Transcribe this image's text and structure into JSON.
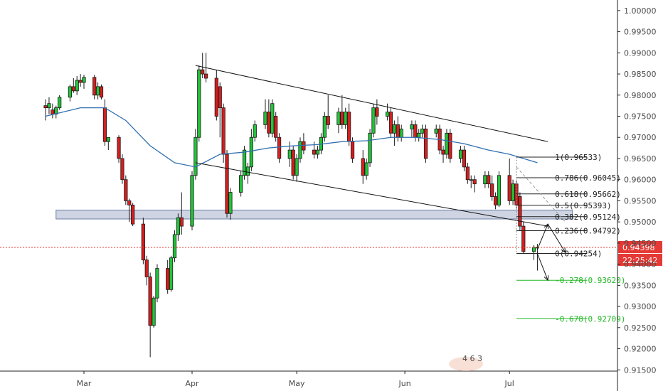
{
  "chart_data": {
    "type": "candlestick",
    "y_axis": {
      "ylim": [
        0.91,
        1.0025
      ],
      "ticks": [
        "1.00000",
        "0.99500",
        "0.99000",
        "0.98500",
        "0.98000",
        "0.97500",
        "0.97000",
        "0.96500",
        "0.96000",
        "0.95500",
        "0.95000",
        "0.94500",
        "0.94000",
        "0.93500",
        "0.93000",
        "0.92500",
        "0.92000",
        "0.91500"
      ]
    },
    "x_axis": {
      "ticks": [
        "Mar",
        "Apr",
        "May",
        "Jun",
        "Jul"
      ]
    },
    "candles": [
      {
        "date": "2019-02-18",
        "o": 0.9775,
        "h": 0.979,
        "l": 0.974,
        "c": 0.977
      },
      {
        "date": "2019-02-19",
        "o": 0.977,
        "h": 0.9795,
        "l": 0.9755,
        "c": 0.978
      },
      {
        "date": "2019-02-20",
        "o": 0.9765,
        "h": 0.978,
        "l": 0.9745,
        "c": 0.9755
      },
      {
        "date": "2019-02-21",
        "o": 0.9755,
        "h": 0.9775,
        "l": 0.9745,
        "c": 0.977
      },
      {
        "date": "2019-02-22",
        "o": 0.977,
        "h": 0.98,
        "l": 0.9765,
        "c": 0.9795
      },
      {
        "date": "2019-02-25",
        "o": 0.9795,
        "h": 0.9825,
        "l": 0.9785,
        "c": 0.982
      },
      {
        "date": "2019-02-26",
        "o": 0.982,
        "h": 0.984,
        "l": 0.9805,
        "c": 0.981
      },
      {
        "date": "2019-02-27",
        "o": 0.981,
        "h": 0.9845,
        "l": 0.98,
        "c": 0.9835
      },
      {
        "date": "2019-02-28",
        "o": 0.9835,
        "h": 0.985,
        "l": 0.982,
        "c": 0.983
      },
      {
        "date": "2019-03-01",
        "o": 0.983,
        "h": 0.9848,
        "l": 0.9815,
        "c": 0.9842
      },
      {
        "date": "2019-03-04",
        "o": 0.9842,
        "h": 0.9848,
        "l": 0.979,
        "c": 0.98
      },
      {
        "date": "2019-03-05",
        "o": 0.98,
        "h": 0.983,
        "l": 0.979,
        "c": 0.982
      },
      {
        "date": "2019-03-06",
        "o": 0.982,
        "h": 0.9825,
        "l": 0.979,
        "c": 0.9795
      },
      {
        "date": "2019-03-07",
        "o": 0.977,
        "h": 0.979,
        "l": 0.968,
        "c": 0.969
      },
      {
        "date": "2019-03-08",
        "o": 0.969,
        "h": 0.97,
        "l": 0.967,
        "c": 0.97
      },
      {
        "date": "2019-03-11",
        "o": 0.97,
        "h": 0.9705,
        "l": 0.964,
        "c": 0.965
      },
      {
        "date": "2019-03-12",
        "o": 0.965,
        "h": 0.966,
        "l": 0.959,
        "c": 0.96
      },
      {
        "date": "2019-03-13",
        "o": 0.96,
        "h": 0.961,
        "l": 0.954,
        "c": 0.955
      },
      {
        "date": "2019-03-14",
        "o": 0.955,
        "h": 0.9555,
        "l": 0.95,
        "c": 0.954
      },
      {
        "date": "2019-03-15",
        "o": 0.954,
        "h": 0.9545,
        "l": 0.949,
        "c": 0.9495
      },
      {
        "date": "2019-03-18",
        "o": 0.9495,
        "h": 0.951,
        "l": 0.94,
        "c": 0.941
      },
      {
        "date": "2019-03-19",
        "o": 0.941,
        "h": 0.942,
        "l": 0.935,
        "c": 0.937
      },
      {
        "date": "2019-03-20",
        "o": 0.937,
        "h": 0.938,
        "l": 0.918,
        "c": 0.9255
      },
      {
        "date": "2019-03-21",
        "o": 0.9255,
        "h": 0.9325,
        "l": 0.925,
        "c": 0.932
      },
      {
        "date": "2019-03-22",
        "o": 0.932,
        "h": 0.94,
        "l": 0.931,
        "c": 0.939
      },
      {
        "date": "2019-03-25",
        "o": 0.939,
        "h": 0.941,
        "l": 0.933,
        "c": 0.934
      },
      {
        "date": "2019-03-26",
        "o": 0.934,
        "h": 0.942,
        "l": 0.9335,
        "c": 0.9415
      },
      {
        "date": "2019-03-27",
        "o": 0.9415,
        "h": 0.948,
        "l": 0.9405,
        "c": 0.947
      },
      {
        "date": "2019-03-28",
        "o": 0.947,
        "h": 0.952,
        "l": 0.9455,
        "c": 0.951
      },
      {
        "date": "2019-03-29",
        "o": 0.951,
        "h": 0.957,
        "l": 0.947,
        "c": 0.949
      },
      {
        "date": "2019-04-01",
        "o": 0.949,
        "h": 0.962,
        "l": 0.948,
        "c": 0.961
      },
      {
        "date": "2019-04-02",
        "o": 0.961,
        "h": 0.972,
        "l": 0.96,
        "c": 0.97
      },
      {
        "date": "2019-04-03",
        "o": 0.97,
        "h": 0.987,
        "l": 0.969,
        "c": 0.986
      },
      {
        "date": "2019-04-04",
        "o": 0.986,
        "h": 0.99,
        "l": 0.984,
        "c": 0.985
      },
      {
        "date": "2019-04-05",
        "o": 0.985,
        "h": 0.99,
        "l": 0.983,
        "c": 0.984
      },
      {
        "date": "2019-04-08",
        "o": 0.984,
        "h": 0.986,
        "l": 0.974,
        "c": 0.975
      },
      {
        "date": "2019-04-09",
        "o": 0.982,
        "h": 0.983,
        "l": 0.97,
        "c": 0.977
      },
      {
        "date": "2019-04-10",
        "o": 0.977,
        "h": 0.978,
        "l": 0.964,
        "c": 0.966
      },
      {
        "date": "2019-04-11",
        "o": 0.966,
        "h": 0.967,
        "l": 0.951,
        "c": 0.952
      },
      {
        "date": "2019-04-12",
        "o": 0.952,
        "h": 0.958,
        "l": 0.9505,
        "c": 0.957
      },
      {
        "date": "2019-04-15",
        "o": 0.957,
        "h": 0.962,
        "l": 0.956,
        "c": 0.961
      },
      {
        "date": "2019-04-16",
        "o": 0.961,
        "h": 0.968,
        "l": 0.96,
        "c": 0.967
      },
      {
        "date": "2019-04-17",
        "o": 0.961,
        "h": 0.964,
        "l": 0.959,
        "c": 0.963
      },
      {
        "date": "2019-04-18",
        "o": 0.963,
        "h": 0.972,
        "l": 0.962,
        "c": 0.97
      },
      {
        "date": "2019-04-19",
        "o": 0.97,
        "h": 0.974,
        "l": 0.969,
        "c": 0.973
      },
      {
        "date": "2019-04-22",
        "o": 0.973,
        "h": 0.979,
        "l": 0.972,
        "c": 0.976
      },
      {
        "date": "2019-04-23",
        "o": 0.976,
        "h": 0.979,
        "l": 0.97,
        "c": 0.971
      },
      {
        "date": "2019-04-24",
        "o": 0.971,
        "h": 0.979,
        "l": 0.97,
        "c": 0.978
      },
      {
        "date": "2019-04-25",
        "o": 0.975,
        "h": 0.976,
        "l": 0.969,
        "c": 0.97
      },
      {
        "date": "2019-04-26",
        "o": 0.97,
        "h": 0.971,
        "l": 0.964,
        "c": 0.965
      },
      {
        "date": "2019-04-29",
        "o": 0.965,
        "h": 0.969,
        "l": 0.963,
        "c": 0.967
      },
      {
        "date": "2019-04-30",
        "o": 0.967,
        "h": 0.968,
        "l": 0.96,
        "c": 0.961
      },
      {
        "date": "2019-05-01",
        "o": 0.961,
        "h": 0.966,
        "l": 0.9595,
        "c": 0.965
      },
      {
        "date": "2019-05-02",
        "o": 0.965,
        "h": 0.97,
        "l": 0.964,
        "c": 0.969
      },
      {
        "date": "2019-05-03",
        "o": 0.969,
        "h": 0.971,
        "l": 0.966,
        "c": 0.967
      },
      {
        "date": "2019-05-06",
        "o": 0.967,
        "h": 0.969,
        "l": 0.965,
        "c": 0.966
      },
      {
        "date": "2019-05-07",
        "o": 0.966,
        "h": 0.968,
        "l": 0.965,
        "c": 0.967
      },
      {
        "date": "2019-05-08",
        "o": 0.967,
        "h": 0.971,
        "l": 0.966,
        "c": 0.97
      },
      {
        "date": "2019-05-09",
        "o": 0.97,
        "h": 0.976,
        "l": 0.969,
        "c": 0.975
      },
      {
        "date": "2019-05-10",
        "o": 0.975,
        "h": 0.98,
        "l": 0.972,
        "c": 0.973
      },
      {
        "date": "2019-05-13",
        "o": 0.973,
        "h": 0.977,
        "l": 0.971,
        "c": 0.976
      },
      {
        "date": "2019-05-14",
        "o": 0.976,
        "h": 0.98,
        "l": 0.972,
        "c": 0.973
      },
      {
        "date": "2019-05-15",
        "o": 0.973,
        "h": 0.977,
        "l": 0.972,
        "c": 0.976
      },
      {
        "date": "2019-05-16",
        "o": 0.976,
        "h": 0.978,
        "l": 0.968,
        "c": 0.969
      },
      {
        "date": "2019-05-17",
        "o": 0.969,
        "h": 0.97,
        "l": 0.964,
        "c": 0.965
      },
      {
        "date": "2019-05-20",
        "o": 0.965,
        "h": 0.967,
        "l": 0.959,
        "c": 0.961
      },
      {
        "date": "2019-05-21",
        "o": 0.961,
        "h": 0.965,
        "l": 0.96,
        "c": 0.964
      },
      {
        "date": "2019-05-22",
        "o": 0.964,
        "h": 0.972,
        "l": 0.963,
        "c": 0.971
      },
      {
        "date": "2019-05-23",
        "o": 0.971,
        "h": 0.978,
        "l": 0.97,
        "c": 0.977
      },
      {
        "date": "2019-05-24",
        "o": 0.977,
        "h": 0.979,
        "l": 0.973,
        "c": 0.975
      },
      {
        "date": "2019-05-27",
        "o": 0.975,
        "h": 0.978,
        "l": 0.974,
        "c": 0.976
      },
      {
        "date": "2019-05-28",
        "o": 0.976,
        "h": 0.977,
        "l": 0.97,
        "c": 0.971
      },
      {
        "date": "2019-05-29",
        "o": 0.971,
        "h": 0.974,
        "l": 0.968,
        "c": 0.973
      },
      {
        "date": "2019-05-30",
        "o": 0.973,
        "h": 0.975,
        "l": 0.969,
        "c": 0.97
      },
      {
        "date": "2019-05-31",
        "o": 0.97,
        "h": 0.973,
        "l": 0.969,
        "c": 0.972
      },
      {
        "date": "2019-06-03",
        "o": 0.972,
        "h": 0.974,
        "l": 0.97,
        "c": 0.973
      },
      {
        "date": "2019-06-04",
        "o": 0.973,
        "h": 0.974,
        "l": 0.969,
        "c": 0.97
      },
      {
        "date": "2019-06-05",
        "o": 0.97,
        "h": 0.972,
        "l": 0.969,
        "c": 0.971
      },
      {
        "date": "2019-06-06",
        "o": 0.971,
        "h": 0.973,
        "l": 0.97,
        "c": 0.972
      },
      {
        "date": "2019-06-07",
        "o": 0.972,
        "h": 0.973,
        "l": 0.964,
        "c": 0.965
      },
      {
        "date": "2019-06-10",
        "o": 0.971,
        "h": 0.973,
        "l": 0.97,
        "c": 0.972
      },
      {
        "date": "2019-06-11",
        "o": 0.972,
        "h": 0.973,
        "l": 0.966,
        "c": 0.967
      },
      {
        "date": "2019-06-12",
        "o": 0.967,
        "h": 0.968,
        "l": 0.964,
        "c": 0.966
      },
      {
        "date": "2019-06-13",
        "o": 0.966,
        "h": 0.972,
        "l": 0.965,
        "c": 0.971
      },
      {
        "date": "2019-06-14",
        "o": 0.971,
        "h": 0.972,
        "l": 0.964,
        "c": 0.965
      },
      {
        "date": "2019-06-17",
        "o": 0.965,
        "h": 0.968,
        "l": 0.964,
        "c": 0.967
      },
      {
        "date": "2019-06-18",
        "o": 0.967,
        "h": 0.968,
        "l": 0.962,
        "c": 0.963
      },
      {
        "date": "2019-06-19",
        "o": 0.963,
        "h": 0.964,
        "l": 0.959,
        "c": 0.96
      },
      {
        "date": "2019-06-20",
        "o": 0.96,
        "h": 0.961,
        "l": 0.958,
        "c": 0.96
      },
      {
        "date": "2019-06-21",
        "o": 0.96,
        "h": 0.961,
        "l": 0.957,
        "c": 0.959
      },
      {
        "date": "2019-06-24",
        "o": 0.959,
        "h": 0.962,
        "l": 0.958,
        "c": 0.961
      },
      {
        "date": "2019-06-25",
        "o": 0.961,
        "h": 0.962,
        "l": 0.958,
        "c": 0.959
      },
      {
        "date": "2019-06-26",
        "o": 0.959,
        "h": 0.961,
        "l": 0.955,
        "c": 0.956
      },
      {
        "date": "2019-06-27",
        "o": 0.956,
        "h": 0.957,
        "l": 0.953,
        "c": 0.954
      },
      {
        "date": "2019-06-28",
        "o": 0.954,
        "h": 0.962,
        "l": 0.9535,
        "c": 0.961
      },
      {
        "date": "2019-07-01",
        "o": 0.961,
        "h": 0.965,
        "l": 0.954,
        "c": 0.955
      },
      {
        "date": "2019-07-02",
        "o": 0.955,
        "h": 0.96,
        "l": 0.954,
        "c": 0.959
      },
      {
        "date": "2019-07-03",
        "o": 0.959,
        "h": 0.96,
        "l": 0.953,
        "c": 0.954
      },
      {
        "date": "2019-07-04",
        "o": 0.956,
        "h": 0.957,
        "l": 0.948,
        "c": 0.949
      },
      {
        "date": "2019-07-05",
        "o": 0.949,
        "h": 0.95,
        "l": 0.9425,
        "c": 0.943
      },
      {
        "date": "2019-07-08",
        "o": 0.943,
        "h": 0.9445,
        "l": 0.941,
        "c": 0.944
      },
      {
        "date": "2019-07-09",
        "o": 0.944,
        "h": 0.9448,
        "l": 0.9385,
        "c": 0.944
      }
    ],
    "moving_average": {
      "color": "#2f6fb0",
      "points": [
        {
          "date": "2019-02-18",
          "v": 0.975
        },
        {
          "date": "2019-02-28",
          "v": 0.977
        },
        {
          "date": "2019-03-07",
          "v": 0.977
        },
        {
          "date": "2019-03-13",
          "v": 0.974
        },
        {
          "date": "2019-03-20",
          "v": 0.968
        },
        {
          "date": "2019-03-27",
          "v": 0.964
        },
        {
          "date": "2019-04-02",
          "v": 0.963
        },
        {
          "date": "2019-04-09",
          "v": 0.966
        },
        {
          "date": "2019-04-16",
          "v": 0.9665
        },
        {
          "date": "2019-04-23",
          "v": 0.9675
        },
        {
          "date": "2019-04-30",
          "v": 0.968
        },
        {
          "date": "2019-05-07",
          "v": 0.9683
        },
        {
          "date": "2019-05-14",
          "v": 0.969
        },
        {
          "date": "2019-05-21",
          "v": 0.9692
        },
        {
          "date": "2019-05-28",
          "v": 0.97
        },
        {
          "date": "2019-06-04",
          "v": 0.97
        },
        {
          "date": "2019-06-11",
          "v": 0.9695
        },
        {
          "date": "2019-06-18",
          "v": 0.9685
        },
        {
          "date": "2019-06-25",
          "v": 0.967
        },
        {
          "date": "2019-07-01",
          "v": 0.966
        },
        {
          "date": "2019-07-09",
          "v": 0.964
        }
      ]
    },
    "channel_lines": [
      {
        "from": {
          "date": "2019-04-02",
          "v": 0.987
        },
        "to": {
          "date": "2019-07-12",
          "v": 0.969
        }
      },
      {
        "from": {
          "date": "2019-04-02",
          "v": 0.964
        },
        "to": {
          "date": "2019-07-12",
          "v": 0.949
        }
      }
    ],
    "support_zone": {
      "from_date": "2019-02-21",
      "to_date": "2019-07-19",
      "top": 0.9528,
      "bottom": 0.9507,
      "color": "#bfc6d8",
      "border": "#6b7ea6"
    },
    "fibonacci": {
      "anchor_date": "2019-07-03",
      "end_date": "2019-07-09",
      "label_date": "2019-07-12",
      "levels": [
        {
          "ratio": "1",
          "price": 0.96533,
          "label": "1(0.96533)",
          "color": "#222222"
        },
        {
          "ratio": "0.786",
          "price": 0.96045,
          "label": "0.786(0.96045)",
          "color": "#222222"
        },
        {
          "ratio": "0.618",
          "price": 0.95662,
          "label": "0.618(0.95662)",
          "color": "#222222"
        },
        {
          "ratio": "0.5",
          "price": 0.95393,
          "label": "0.5(0.95393)",
          "color": "#222222"
        },
        {
          "ratio": "0.382",
          "price": 0.95124,
          "label": "0.382(0.95124)",
          "color": "#222222"
        },
        {
          "ratio": "0.236",
          "price": 0.94792,
          "label": "0.236(0.94792)",
          "color": "#222222"
        },
        {
          "ratio": "0",
          "price": 0.94254,
          "label": "0(0.94254)",
          "color": "#222222"
        },
        {
          "ratio": "-0.278",
          "price": 0.9362,
          "label": "-0.278(0.93620)",
          "color": "#22b825"
        },
        {
          "ratio": "-0.678",
          "price": 0.92709,
          "label": "-0.678(0.92709)",
          "color": "#22b825"
        }
      ]
    },
    "projection_path": [
      {
        "date": "2019-07-09",
        "v": 0.9435
      },
      {
        "date": "2019-07-12",
        "v": 0.9495
      },
      {
        "date": "2019-07-17",
        "v": 0.9428
      }
    ],
    "down_path": [
      {
        "date": "2019-07-09",
        "v": 0.9425
      },
      {
        "date": "2019-07-12",
        "v": 0.9362
      }
    ],
    "dashed_trend": {
      "from": {
        "date": "2019-07-03",
        "v": 0.963
      },
      "to": {
        "date": "2019-07-17",
        "v": 0.95
      }
    },
    "current_price": {
      "value": 0.94398,
      "label": "0.94398",
      "countdown": "22:25:42",
      "color": "#e53935"
    }
  },
  "watermark_text": "4 6 3"
}
